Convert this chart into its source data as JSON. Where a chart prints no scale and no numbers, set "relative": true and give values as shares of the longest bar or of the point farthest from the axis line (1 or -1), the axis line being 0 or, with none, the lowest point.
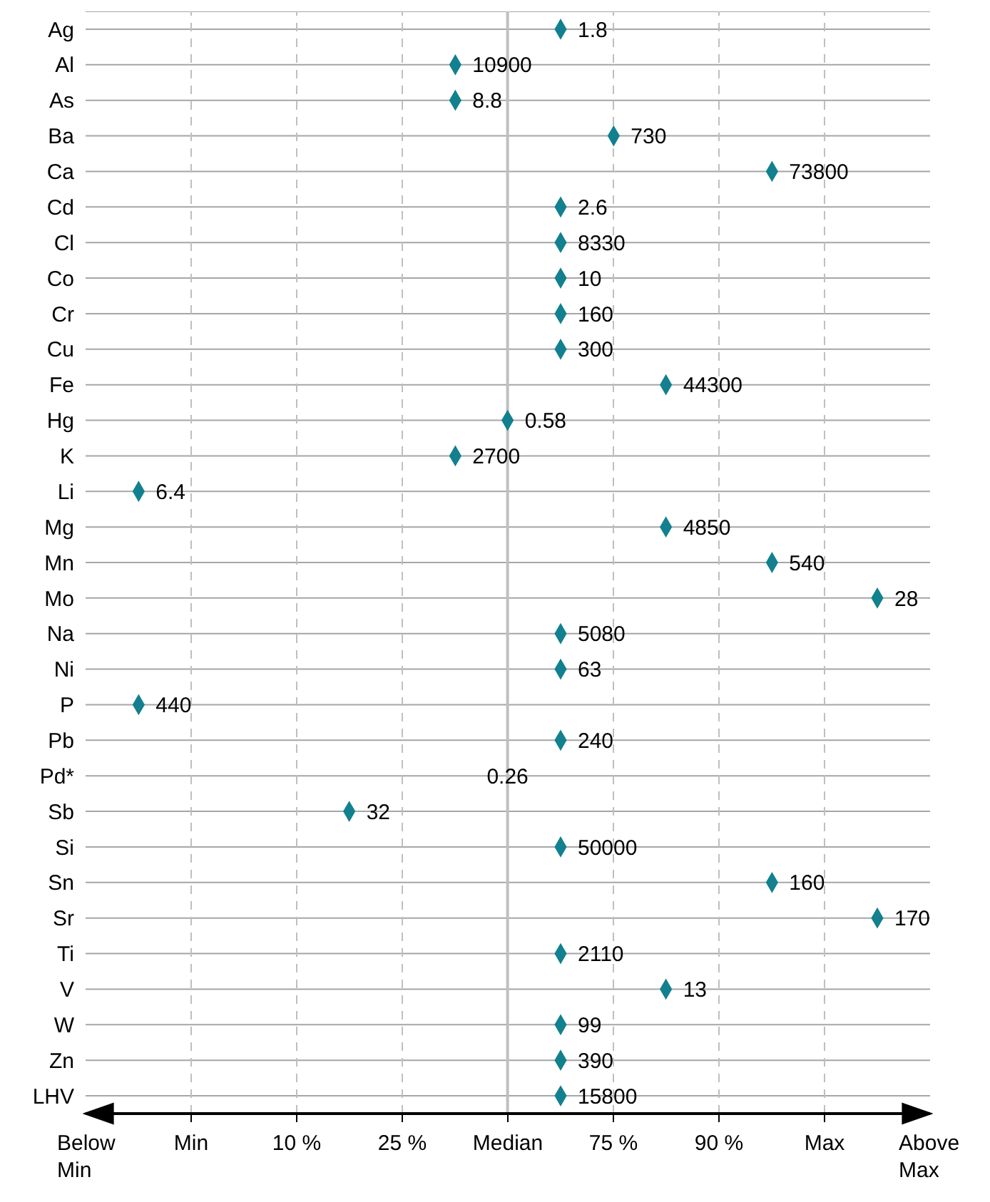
{
  "chart_data": {
    "type": "scatter",
    "orientation": "horizontal",
    "relative": true,
    "categories": [
      "Ag",
      "Al",
      "As",
      "Ba",
      "Ca",
      "Cd",
      "Cl",
      "Co",
      "Cr",
      "Cu",
      "Fe",
      "Hg",
      "K",
      "Li",
      "Mg",
      "Mn",
      "Mo",
      "Na",
      "Ni",
      "P",
      "Pb",
      "Pd*",
      "Sb",
      "Si",
      "Sn",
      "Sr",
      "Ti",
      "V",
      "W",
      "Zn",
      "LHV"
    ],
    "values": [
      0.6,
      0.467,
      0.467,
      0.667,
      0.867,
      0.6,
      0.6,
      0.6,
      0.6,
      0.6,
      0.733,
      0.533,
      0.467,
      0.067,
      0.733,
      0.867,
      1,
      0.6,
      0.6,
      0.067,
      0.6,
      null,
      0.333,
      0.6,
      0.867,
      1,
      0.6,
      0.733,
      0.6,
      0.6,
      0.6
    ],
    "color": "#12808e",
    "marker": "diamond",
    "grid": true,
    "ref_lines": [
      {
        "axis": "x",
        "value": 0.533,
        "color": "#bfbfbf",
        "line_style": "solid"
      }
    ],
    "annotations": [
      "Below\nMin",
      "Min",
      "10 %",
      "25 %",
      "Median",
      "75 %",
      "90 %",
      "Max",
      "Above\nMax",
      {
        "text": "1.8",
        "x": 0.6,
        "y": "Ag"
      },
      {
        "text": "10900",
        "x": 0.467,
        "y": "Al"
      },
      {
        "text": "8.8",
        "x": 0.467,
        "y": "As"
      },
      {
        "text": "730",
        "x": 0.667,
        "y": "Ba"
      },
      {
        "text": "73800",
        "x": 0.867,
        "y": "Ca"
      },
      {
        "text": "2.6",
        "x": 0.6,
        "y": "Cd"
      },
      {
        "text": "8330",
        "x": 0.6,
        "y": "Cl"
      },
      {
        "text": "10",
        "x": 0.6,
        "y": "Co"
      },
      {
        "text": "160",
        "x": 0.6,
        "y": "Cr"
      },
      {
        "text": "300",
        "x": 0.6,
        "y": "Cu"
      },
      {
        "text": "44300",
        "x": 0.733,
        "y": "Fe"
      },
      {
        "text": "0.58",
        "x": 0.533,
        "y": "Hg"
      },
      {
        "text": "2700",
        "x": 0.467,
        "y": "K"
      },
      {
        "text": "6.4",
        "x": 0.067,
        "y": "Li"
      },
      {
        "text": "4850",
        "x": 0.733,
        "y": "Mg"
      },
      {
        "text": "540",
        "x": 0.867,
        "y": "Mn"
      },
      {
        "text": "28",
        "x": 1,
        "y": "Mo"
      },
      {
        "text": "5080",
        "x": 0.6,
        "y": "Na"
      },
      {
        "text": "63",
        "x": 0.6,
        "y": "Ni"
      },
      {
        "text": "440",
        "x": 0.067,
        "y": "P"
      },
      {
        "text": "240",
        "x": 0.6,
        "y": "Pb"
      },
      {
        "text": "0.26",
        "x": 0.533,
        "y": "Pd*"
      },
      {
        "text": "32",
        "x": 0.333,
        "y": "Sb"
      },
      {
        "text": "50000",
        "x": 0.6,
        "y": "Si"
      },
      {
        "text": "160",
        "x": 0.867,
        "y": "Sn"
      },
      {
        "text": "170",
        "x": 1,
        "y": "Sr"
      },
      {
        "text": "2110",
        "x": 0.6,
        "y": "Ti"
      },
      {
        "text": "13",
        "x": 0.733,
        "y": "V"
      },
      {
        "text": "99",
        "x": 0.6,
        "y": "W"
      },
      {
        "text": "390",
        "x": 0.6,
        "y": "Zn"
      },
      {
        "text": "15800",
        "x": 0.6,
        "y": "LHV"
      }
    ]
  }
}
